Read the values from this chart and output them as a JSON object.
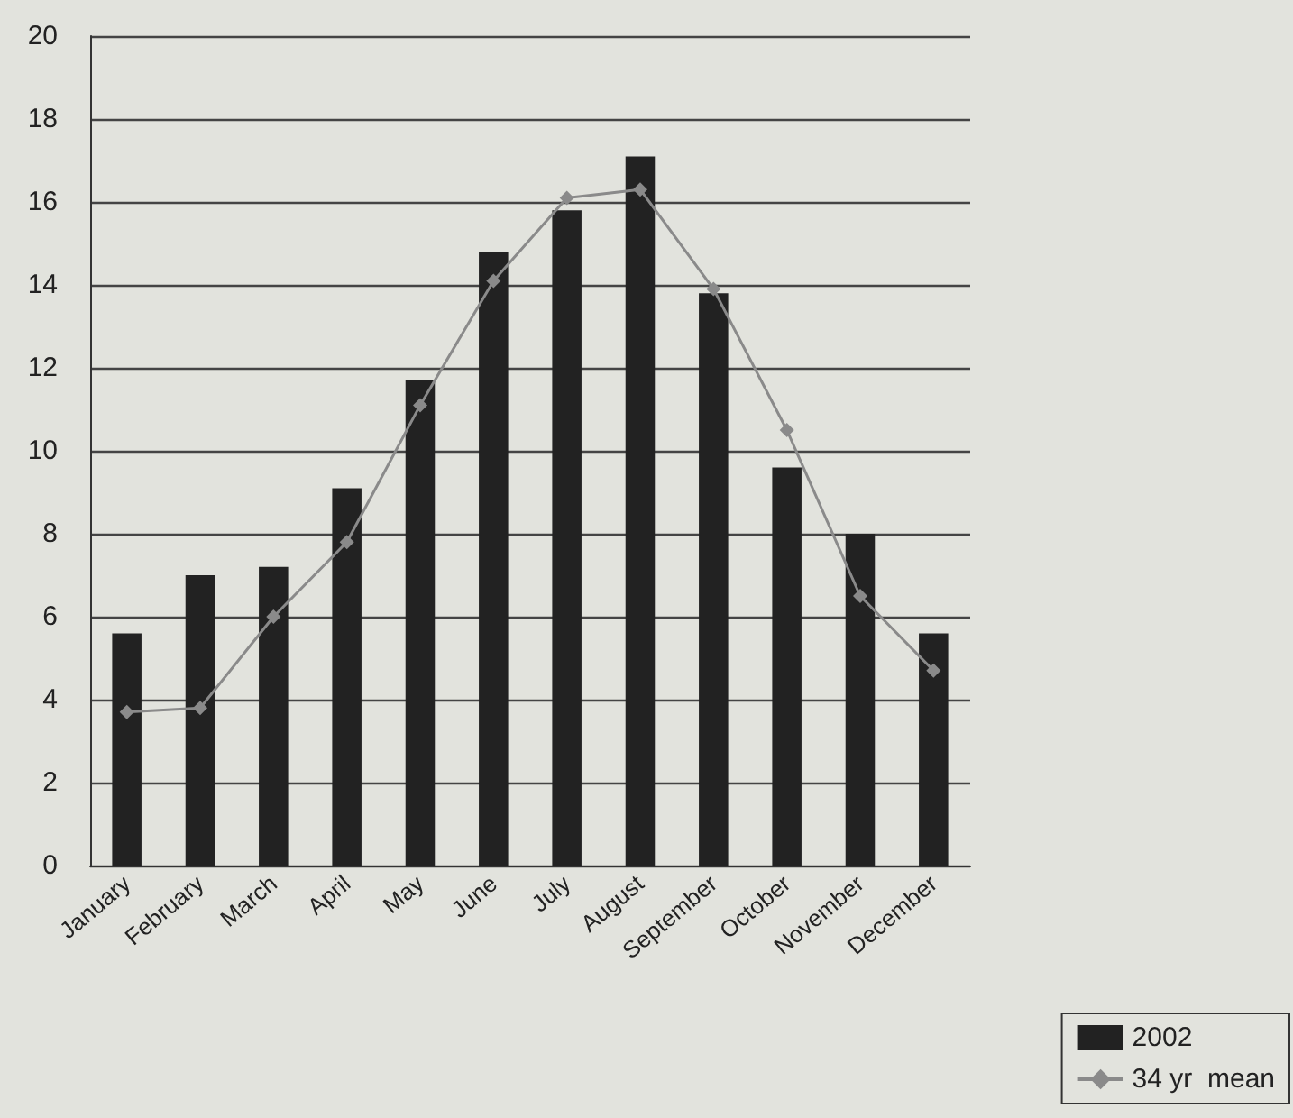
{
  "chart_data": {
    "type": "bar",
    "categories": [
      "January",
      "February",
      "March",
      "April",
      "May",
      "June",
      "July",
      "August",
      "September",
      "October",
      "November",
      "December"
    ],
    "series": [
      {
        "name": "2002",
        "color": "#222222",
        "values": [
          5.6,
          7.0,
          7.2,
          9.1,
          11.7,
          14.8,
          15.8,
          17.1,
          13.8,
          9.6,
          8.0,
          5.6
        ]
      },
      {
        "name": "34 yr  mean",
        "type": "line",
        "color": "#8a8a8a",
        "marker": "diamond",
        "values": [
          3.7,
          3.8,
          6.0,
          7.8,
          11.1,
          14.1,
          16.1,
          16.3,
          13.9,
          10.5,
          6.5,
          4.7
        ]
      }
    ],
    "ylim": [
      0,
      20
    ],
    "yticks": [
      0,
      2,
      4,
      6,
      8,
      10,
      12,
      14,
      16,
      18,
      20
    ],
    "grid": "y",
    "legend": "bottom right"
  }
}
